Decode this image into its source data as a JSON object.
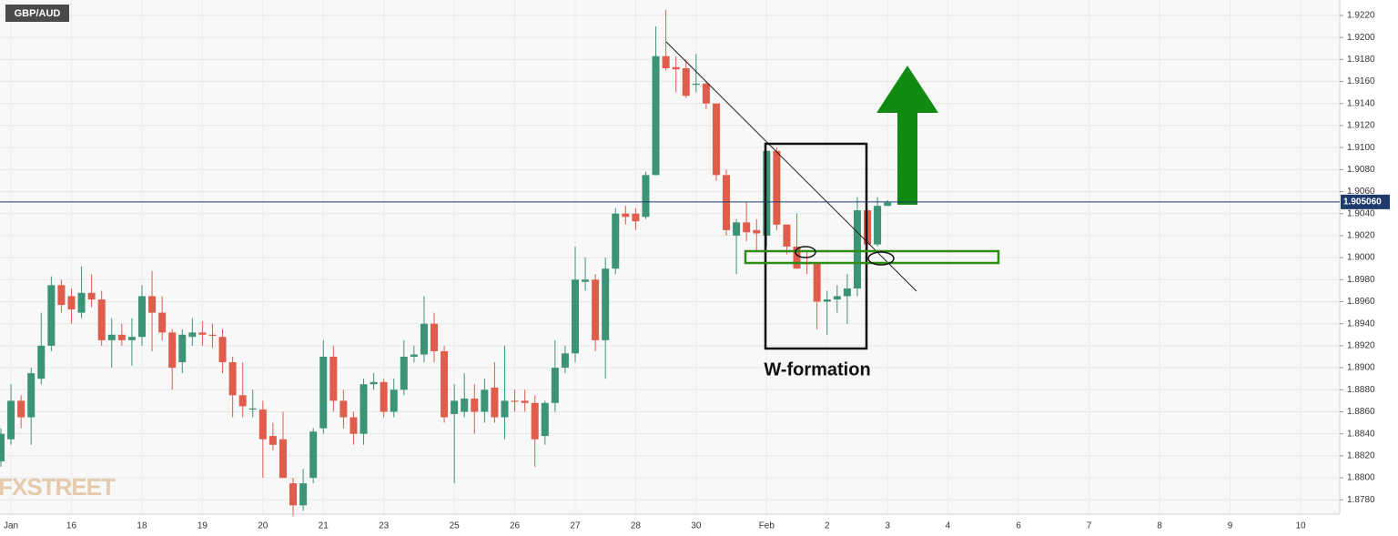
{
  "chart_data": {
    "type": "candlestick",
    "title": "GBP/AUD",
    "annotation": "W-formation",
    "watermark": "FXSTREET",
    "up_color": "#3b9474",
    "down_color": "#e05c4b",
    "grid": true,
    "categories": [
      null,
      "Jan",
      null,
      null,
      null,
      null,
      null,
      "16",
      null,
      null,
      null,
      null,
      null,
      null,
      "18",
      null,
      null,
      null,
      null,
      null,
      "19",
      null,
      null,
      null,
      null,
      null,
      "20",
      null,
      null,
      null,
      null,
      null,
      "21",
      null,
      null,
      null,
      null,
      null,
      "23",
      null,
      null,
      null,
      null,
      null,
      null,
      "25",
      null,
      null,
      null,
      null,
      null,
      "26",
      null,
      null,
      null,
      null,
      null,
      "27",
      null,
      null,
      null,
      null,
      null,
      "28",
      null,
      null,
      null,
      null,
      null,
      "30",
      null,
      null,
      null,
      null,
      null,
      null,
      "Feb",
      null,
      null,
      null,
      null,
      null,
      "2",
      null,
      null,
      null,
      null,
      null,
      "3",
      null,
      null,
      null,
      null,
      null,
      "4",
      null,
      null,
      null,
      null,
      null,
      null,
      "6",
      null,
      null,
      null,
      null,
      null,
      null,
      "7",
      null,
      null,
      null,
      null,
      null,
      null,
      "8",
      null,
      null,
      null,
      null,
      null,
      null,
      "9",
      null,
      null,
      null,
      null,
      null,
      null,
      "10",
      null,
      null,
      null
    ],
    "open": [
      1.8815,
      1.8835,
      1.887,
      1.8855,
      1.889,
      1.892,
      1.8975,
      1.8965,
      1.895,
      1.8968,
      1.8962,
      1.8925,
      1.893,
      1.8925,
      1.8928,
      1.8965,
      1.895,
      1.8932,
      1.8905,
      1.8928,
      1.8932,
      1.893,
      1.8928,
      1.8905,
      1.8875,
      1.8862,
      1.8862,
      1.8838,
      1.8835,
      1.8795,
      1.8775,
      1.88,
      1.8845,
      1.891,
      1.887,
      1.8855,
      1.884,
      1.8885,
      1.8887,
      1.886,
      1.888,
      1.891,
      1.8912,
      1.894,
      1.8915,
      1.8858,
      1.886,
      1.8872,
      1.886,
      1.8882,
      1.8855,
      1.887,
      1.887,
      1.8868,
      1.8838,
      1.8868,
      1.89,
      1.8913,
      1.8978,
      1.898,
      1.8925,
      1.899,
      1.904,
      1.904,
      1.9037,
      1.9075,
      1.9183,
      1.9173,
      1.9172,
      1.9157,
      1.9158,
      1.914,
      1.9075,
      1.902,
      1.9032,
      1.9025,
      1.902,
      1.9097,
      1.903,
      1.901,
      1.8996,
      1.8995,
      1.896,
      1.8962,
      1.8965,
      1.8972,
      1.9043,
      1.9012,
      1.9047,
      null,
      null,
      null,
      null,
      null,
      null,
      null,
      null,
      null,
      null,
      null,
      null,
      null,
      null,
      null,
      null,
      null,
      null,
      null,
      null,
      null,
      null,
      null,
      null,
      null,
      null,
      null,
      null,
      null,
      null,
      null,
      null,
      null,
      null,
      null,
      null,
      null,
      null,
      null,
      null,
      null,
      null,
      null,
      null
    ],
    "high": [
      1.8845,
      1.8885,
      1.8875,
      1.89,
      1.895,
      1.8983,
      1.898,
      1.8972,
      1.8992,
      1.8985,
      1.897,
      1.8945,
      1.894,
      1.8945,
      1.8975,
      1.8988,
      1.8965,
      1.8935,
      1.8935,
      1.8945,
      1.8942,
      1.894,
      1.8935,
      1.891,
      1.8905,
      1.888,
      1.887,
      1.885,
      1.886,
      1.88,
      1.8808,
      1.8845,
      1.8925,
      1.892,
      1.888,
      1.886,
      1.889,
      1.8895,
      1.889,
      1.889,
      1.8925,
      1.892,
      1.8965,
      1.895,
      1.892,
      1.8885,
      1.8895,
      1.8885,
      1.889,
      1.8905,
      1.892,
      1.888,
      1.888,
      1.8875,
      1.887,
      1.8925,
      1.892,
      1.901,
      1.9,
      1.8985,
      1.9,
      1.9045,
      1.9047,
      1.9045,
      1.9078,
      1.921,
      1.9225,
      1.9183,
      1.918,
      1.9185,
      1.916,
      1.914,
      1.908,
      1.9035,
      1.905,
      1.9035,
      1.9097,
      1.91,
      1.903,
      1.904,
      1.9005,
      1.8995,
      1.897,
      1.8975,
      1.8985,
      1.9055,
      1.9045,
      1.9055,
      1.9052,
      null,
      null,
      null,
      null,
      null,
      null,
      null,
      null,
      null,
      null,
      null,
      null,
      null,
      null,
      null,
      null,
      null,
      null,
      null,
      null,
      null,
      null,
      null,
      null,
      null,
      null,
      null,
      null,
      null,
      null,
      null,
      null,
      null,
      null,
      null,
      null,
      null,
      null,
      null,
      null,
      null,
      null,
      null,
      null
    ],
    "low": [
      1.881,
      1.883,
      1.8845,
      1.883,
      1.8885,
      1.8915,
      1.895,
      1.894,
      1.8945,
      1.8955,
      1.892,
      1.89,
      1.892,
      1.8902,
      1.892,
      1.8915,
      1.8925,
      1.888,
      1.8895,
      1.892,
      1.892,
      1.8918,
      1.8895,
      1.8855,
      1.8855,
      1.8855,
      1.88,
      1.8825,
      1.88,
      1.8765,
      1.877,
      1.8795,
      1.884,
      1.886,
      1.8845,
      1.883,
      1.883,
      1.888,
      1.8855,
      1.8855,
      1.8875,
      1.8905,
      1.8905,
      1.8905,
      1.885,
      1.8795,
      1.8855,
      1.884,
      1.885,
      1.885,
      1.8835,
      1.886,
      1.886,
      1.881,
      1.883,
      1.886,
      1.8895,
      1.8905,
      1.897,
      1.8915,
      1.889,
      1.8985,
      1.903,
      1.9025,
      1.9035,
      1.9075,
      1.917,
      1.915,
      1.9145,
      1.915,
      1.9135,
      1.907,
      1.902,
      1.8985,
      1.9015,
      1.9005,
      1.901,
      1.9025,
      1.9003,
      1.899,
      1.8985,
      1.8935,
      1.893,
      1.895,
      1.894,
      1.8965,
      1.9005,
      1.901,
      1.9047,
      null,
      null,
      null,
      null,
      null,
      null,
      null,
      null,
      null,
      null,
      null,
      null,
      null,
      null,
      null,
      null,
      null,
      null,
      null,
      null,
      null,
      null,
      null,
      null,
      null,
      null,
      null,
      null,
      null,
      null,
      null,
      null,
      null,
      null,
      null,
      null,
      null,
      null,
      null,
      null,
      null,
      null,
      null,
      null
    ],
    "close": [
      1.884,
      1.887,
      1.8855,
      1.8895,
      1.892,
      1.8975,
      1.8957,
      1.8953,
      1.8968,
      1.8962,
      1.8925,
      1.893,
      1.8925,
      1.8928,
      1.8965,
      1.895,
      1.8932,
      1.89,
      1.893,
      1.8932,
      1.893,
      1.8929,
      1.8905,
      1.8875,
      1.8865,
      1.8863,
      1.8835,
      1.883,
      1.88,
      1.8775,
      1.8795,
      1.8842,
      1.891,
      1.887,
      1.8855,
      1.884,
      1.8885,
      1.8887,
      1.886,
      1.888,
      1.891,
      1.8912,
      1.894,
      1.8915,
      1.8855,
      1.887,
      1.8872,
      1.886,
      1.888,
      1.8855,
      1.887,
      1.8869,
      1.8868,
      1.8835,
      1.8868,
      1.89,
      1.8913,
      1.898,
      1.898,
      1.8925,
      1.899,
      1.904,
      1.9037,
      1.9033,
      1.9075,
      1.9183,
      1.9172,
      1.9171,
      1.9147,
      1.9158,
      1.914,
      1.9075,
      1.9025,
      1.9032,
      1.9023,
      1.9022,
      1.9097,
      1.903,
      1.901,
      1.899,
      1.8994,
      1.896,
      1.8962,
      1.8965,
      1.8972,
      1.9043,
      1.9012,
      1.9047,
      1.905,
      null,
      null,
      null,
      null,
      null,
      null,
      null,
      null,
      null,
      null,
      null,
      null,
      null,
      null,
      null,
      null,
      null,
      null,
      null,
      null,
      null,
      null,
      null,
      null,
      null,
      null,
      null,
      null,
      null,
      null,
      null,
      null,
      null,
      null,
      null,
      null,
      null,
      null,
      null,
      null,
      null,
      null,
      null,
      null
    ],
    "price_line": {
      "value": 1.90506,
      "label": "1.905060"
    },
    "ylim": [
      1.8767,
      1.9234
    ],
    "yticks": [
      {
        "value": 1.878,
        "label": "1.8780"
      },
      {
        "value": 1.88,
        "label": "1.8800"
      },
      {
        "value": 1.882,
        "label": "1.8820"
      },
      {
        "value": 1.884,
        "label": "1.8840"
      },
      {
        "value": 1.886,
        "label": "1.8860"
      },
      {
        "value": 1.888,
        "label": "1.8880"
      },
      {
        "value": 1.89,
        "label": "1.8900"
      },
      {
        "value": 1.892,
        "label": "1.8920"
      },
      {
        "value": 1.894,
        "label": "1.8940"
      },
      {
        "value": 1.896,
        "label": "1.8960"
      },
      {
        "value": 1.898,
        "label": "1.8980"
      },
      {
        "value": 1.9,
        "label": "1.9000"
      },
      {
        "value": 1.902,
        "label": "1.9020"
      },
      {
        "value": 1.904,
        "label": "1.9040"
      },
      {
        "value": 1.906,
        "label": "1.9060"
      },
      {
        "value": 1.908,
        "label": "1.9080"
      },
      {
        "value": 1.91,
        "label": "1.9100"
      },
      {
        "value": 1.912,
        "label": "1.9120"
      },
      {
        "value": 1.914,
        "label": "1.9140"
      },
      {
        "value": 1.916,
        "label": "1.9160"
      },
      {
        "value": 1.918,
        "label": "1.9180"
      },
      {
        "value": 1.92,
        "label": "1.9200"
      },
      {
        "value": 1.922,
        "label": "1.9220"
      }
    ]
  }
}
